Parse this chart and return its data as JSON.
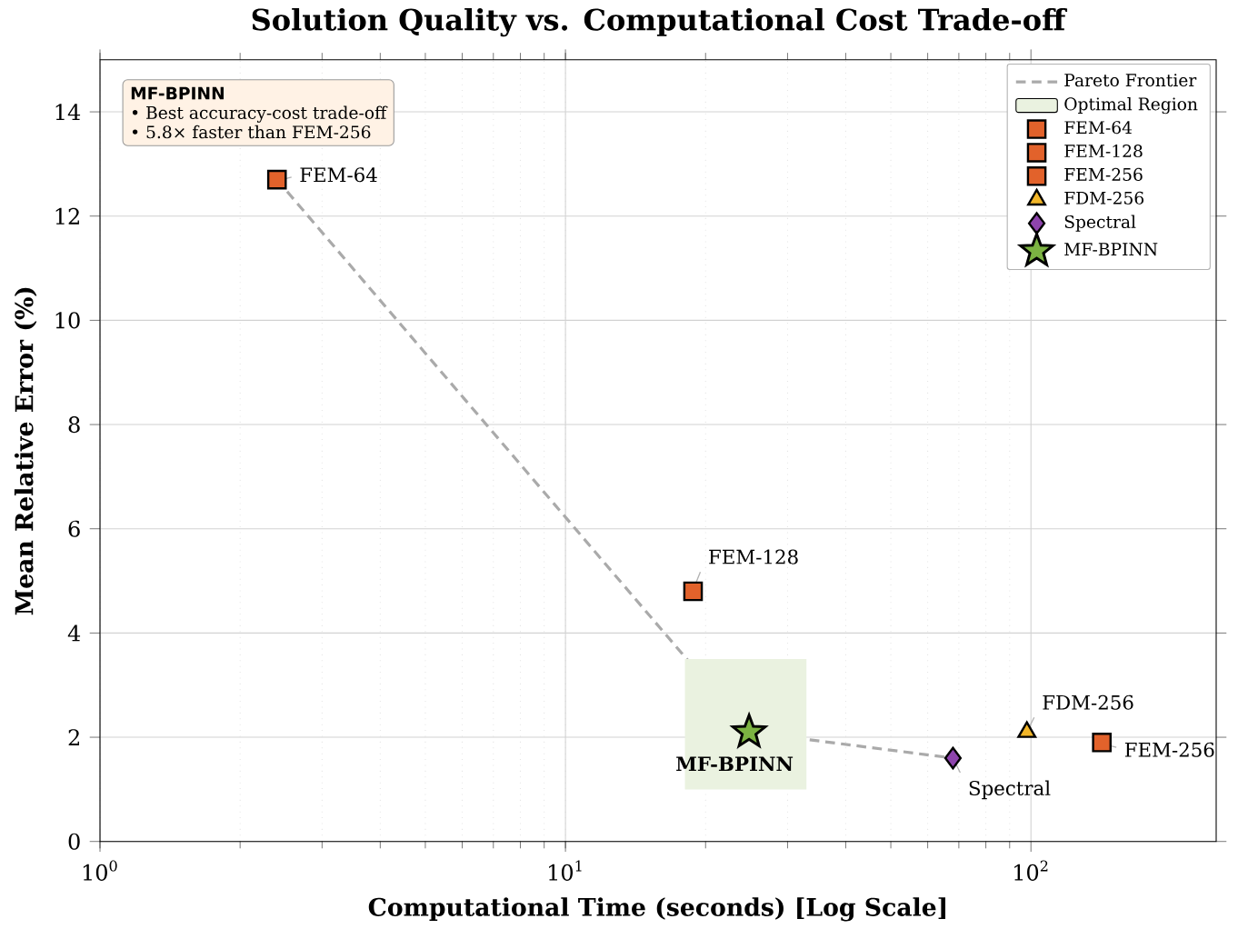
{
  "chart_data": {
    "type": "scatter",
    "title": "Solution Quality vs. Computational Cost Trade-off",
    "xlabel": "Computational Time (seconds) [Log Scale]",
    "ylabel": "Mean Relative Error (%)",
    "log": "x",
    "xlim": [
      1,
      250
    ],
    "ylim": [
      0,
      15
    ],
    "xticks": [
      {
        "value": 1,
        "label": "10$^{0}$"
      },
      {
        "value": 10,
        "label": "10$^{1}$"
      },
      {
        "value": 100,
        "label": "10$^{2}$"
      }
    ],
    "yticks": [
      0,
      2,
      4,
      6,
      8,
      10,
      12,
      14
    ],
    "grid": true,
    "legend": "top right",
    "series": [
      {
        "name": "Pareto Frontier",
        "type": "line",
        "color": "#aaaaaa",
        "line_style": "dashed",
        "marker": "none",
        "x": [
          2.4,
          24.8,
          68
        ],
        "values": [
          12.7,
          2.1,
          1.6
        ]
      },
      {
        "name": "Optimal Region",
        "type": "bar",
        "color": "#eaf2e0",
        "x": [
          24.4
        ],
        "values": [
          2.5
        ],
        "base": [
          1
        ]
      },
      {
        "name": "FEM-64",
        "type": "scatter",
        "color": "#e2622b",
        "marker": "square",
        "x": [
          2.4
        ],
        "values": [
          12.7
        ]
      },
      {
        "name": "FEM-128",
        "type": "scatter",
        "color": "#e2622b",
        "marker": "square",
        "x": [
          18.8
        ],
        "values": [
          4.8
        ]
      },
      {
        "name": "FEM-256",
        "type": "scatter",
        "color": "#e2622b",
        "marker": "square",
        "x": [
          142
        ],
        "values": [
          1.9
        ]
      },
      {
        "name": "FDM-256",
        "type": "scatter",
        "color": "#f2b629",
        "marker": "triangle",
        "x": [
          98
        ],
        "values": [
          2.1
        ]
      },
      {
        "name": "Spectral",
        "type": "scatter",
        "color": "#8e44ad",
        "marker": "diamond",
        "x": [
          68
        ],
        "values": [
          1.6
        ]
      },
      {
        "name": "MF-BPINN",
        "type": "scatter",
        "color": "#7cb342",
        "marker": "star",
        "x": [
          24.8
        ],
        "values": [
          2.1
        ]
      }
    ],
    "annotations": [
      "MF-BPINN",
      "• Best accuracy-cost trade-off",
      "• 5.8× faster than FEM-256",
      {
        "text": "FEM-64",
        "x": 2.4,
        "y": 12.7
      },
      {
        "text": "FEM-128",
        "x": 18.8,
        "y": 4.8
      },
      {
        "text": "FDM-256",
        "x": 98,
        "y": 2.1
      },
      {
        "text": "FEM-256",
        "x": 142,
        "y": 1.9
      },
      {
        "text": "Spectral",
        "x": 68,
        "y": 1.6
      },
      {
        "text": "MF-BPINN",
        "x": 24.8,
        "y": 2.1
      }
    ]
  }
}
